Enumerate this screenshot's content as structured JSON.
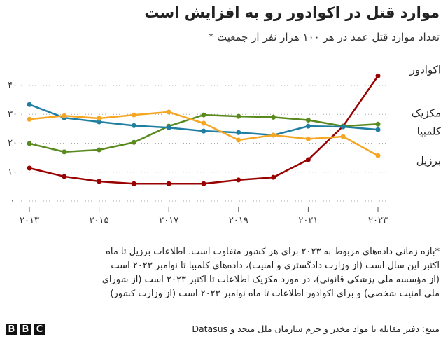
{
  "chart_data": {
    "type": "line",
    "title": "موارد قتل در اکوادور رو به افزایش است",
    "subtitle": "تعداد موارد قتل عمد در هر ۱۰۰ هزار نفر از جمعیت *",
    "x": [
      2013,
      2014,
      2015,
      2016,
      2017,
      2018,
      2019,
      2020,
      2021,
      2022,
      2023
    ],
    "xlim": [
      2013,
      2023
    ],
    "xticks": [
      {
        "value": 2013,
        "label": "۲۰۱۳"
      },
      {
        "value": 2015,
        "label": "۲۰۱۵"
      },
      {
        "value": 2017,
        "label": "۲۰۱۷"
      },
      {
        "value": 2019,
        "label": "۲۰۱۹"
      },
      {
        "value": 2021,
        "label": "۲۰۲۱"
      },
      {
        "value": 2023,
        "label": "۲۰۲۳"
      }
    ],
    "ylim": [
      0,
      40
    ],
    "yticks": [
      {
        "value": 0,
        "label": "۰"
      },
      {
        "value": 10,
        "label": "۱۰"
      },
      {
        "value": 20,
        "label": "۲۰"
      },
      {
        "value": 30,
        "label": "۳۰"
      },
      {
        "value": 40,
        "label": "۴۰"
      }
    ],
    "grid": true,
    "series": [
      {
        "name": "اکوادور",
        "color": "#990000",
        "values": [
          11.4,
          8.5,
          6.8,
          6.0,
          6.0,
          6.0,
          7.3,
          8.2,
          14.3,
          25.9,
          43.3
        ]
      },
      {
        "name": "مکزیک",
        "color": "#588a1e",
        "values": [
          19.9,
          17.0,
          17.7,
          20.3,
          25.9,
          29.8,
          29.3,
          29.0,
          28.0,
          25.9,
          26.6
        ]
      },
      {
        "name": "کلمبیا",
        "color": "#1f7ea1",
        "values": [
          33.4,
          28.8,
          27.4,
          26.1,
          25.4,
          24.2,
          23.7,
          22.8,
          25.9,
          25.7,
          24.7
        ]
      },
      {
        "name": "برزیل",
        "color": "#f5a623",
        "values": [
          28.3,
          29.5,
          28.6,
          29.8,
          30.8,
          26.9,
          21.1,
          22.8,
          21.5,
          22.3,
          15.7
        ]
      }
    ],
    "footnote": [
      "*بازه زمانی داده‌های مربوط به ۲۰۲۳ برای هر کشور متفاوت است. اطلاعات برزیل تا ماه",
      "اکتبر این سال است (از وزارت دادگستری و امنیت)، داده‌های کلمبیا تا نوامبر ۲۰۲۳ است",
      "(از مؤسسه ملی پزشکی قانونی)، در مورد مکزیک اطلاعات تا اکتبر ۲۰۲۳ است (از شورای",
      "ملی امنیت شخصی) و برای اکوادور اطلاعات تا ماه نوامبر ۲۰۲۳ است (از وزارت کشور)"
    ],
    "source": "منبع: دفتر مقابله با مواد مخدر و جرم سازمان ملل متحد و Datasus",
    "logo": [
      "B",
      "B",
      "C"
    ]
  }
}
